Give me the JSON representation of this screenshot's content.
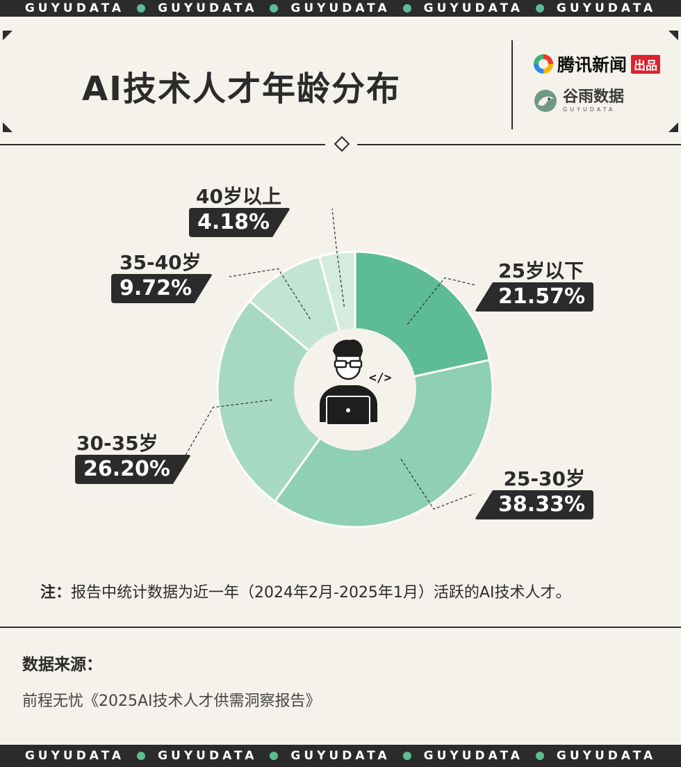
{
  "band": {
    "word": "GUYUDATA"
  },
  "header": {
    "title": "AI技术人才年龄分布",
    "publisher": "腾讯新闻",
    "publisher_tag": "出品",
    "brand": "谷雨数据",
    "brand_sub": "GUYUDATA"
  },
  "colors": {
    "band": "#2b2b2b",
    "accent_dot": "#5dbb95",
    "slices": [
      "#5dbb95",
      "#8fcfb3",
      "#a7d9c2",
      "#c2e4d3",
      "#d4ebe0",
      "#e4f0ea"
    ]
  },
  "chart_data": {
    "type": "pie",
    "categories": [
      "25岁以下",
      "25-30岁",
      "30-35岁",
      "35-40岁",
      "40岁以上"
    ],
    "values": [
      21.57,
      38.33,
      26.2,
      9.72,
      4.18
    ],
    "value_labels": [
      "21.57%",
      "38.33%",
      "26.20%",
      "9.72%",
      "4.18%"
    ],
    "unit": "%",
    "title": "AI技术人才年龄分布",
    "center_icon": "programmer-laptop-icon"
  },
  "note": {
    "label": "注：",
    "text": "报告中统计数据为近一年（2024年2月-2025年1月）活跃的AI技术人才。"
  },
  "source": {
    "label": "数据来源：",
    "text": "前程无忧《2025AI技术人才供需洞察报告》"
  }
}
